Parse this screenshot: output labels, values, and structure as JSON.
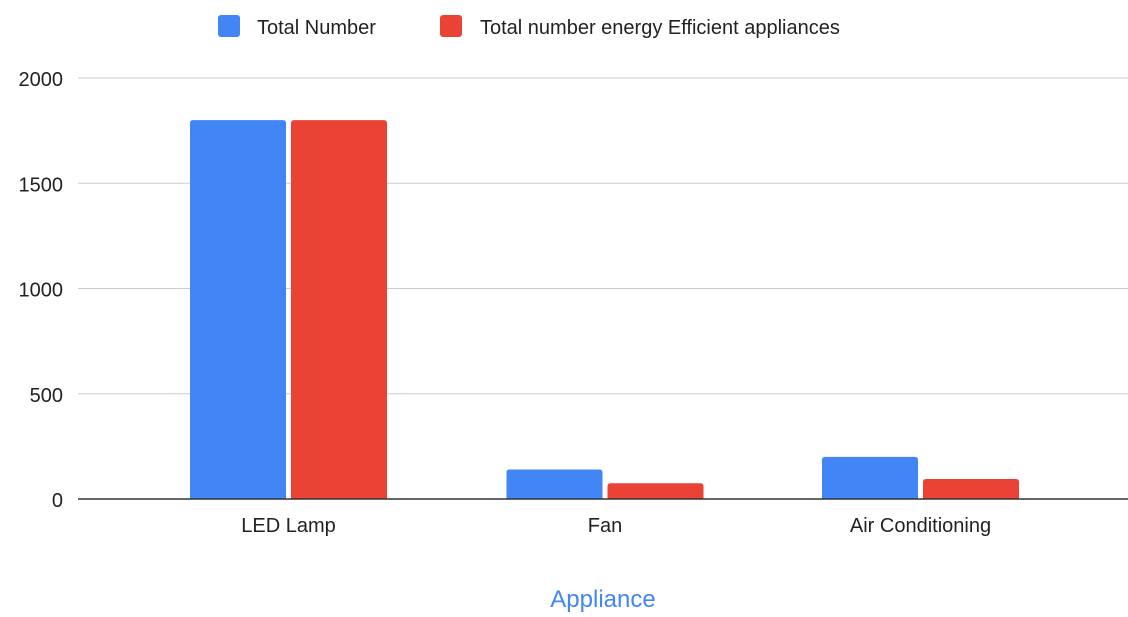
{
  "chart_data": {
    "type": "bar",
    "title": "",
    "xlabel": "Appliance",
    "ylabel": "",
    "categories": [
      "LED Lamp",
      "Fan",
      "Air Conditioning"
    ],
    "series": [
      {
        "name": "Total Number",
        "color": "#4285f4",
        "values": [
          1800,
          140,
          200
        ]
      },
      {
        "name": "Total number energy Efficient appliances",
        "color": "#ea4335",
        "values": [
          1800,
          75,
          95
        ]
      }
    ],
    "ylim": [
      0,
      2000
    ],
    "yticks": [
      0,
      500,
      1000,
      1500,
      2000
    ],
    "ytick_labels": [
      "0",
      "500",
      "1000",
      "1500",
      "2000"
    ],
    "grid": true,
    "legend_position": "top",
    "xlabel_color": "#4285f4"
  }
}
